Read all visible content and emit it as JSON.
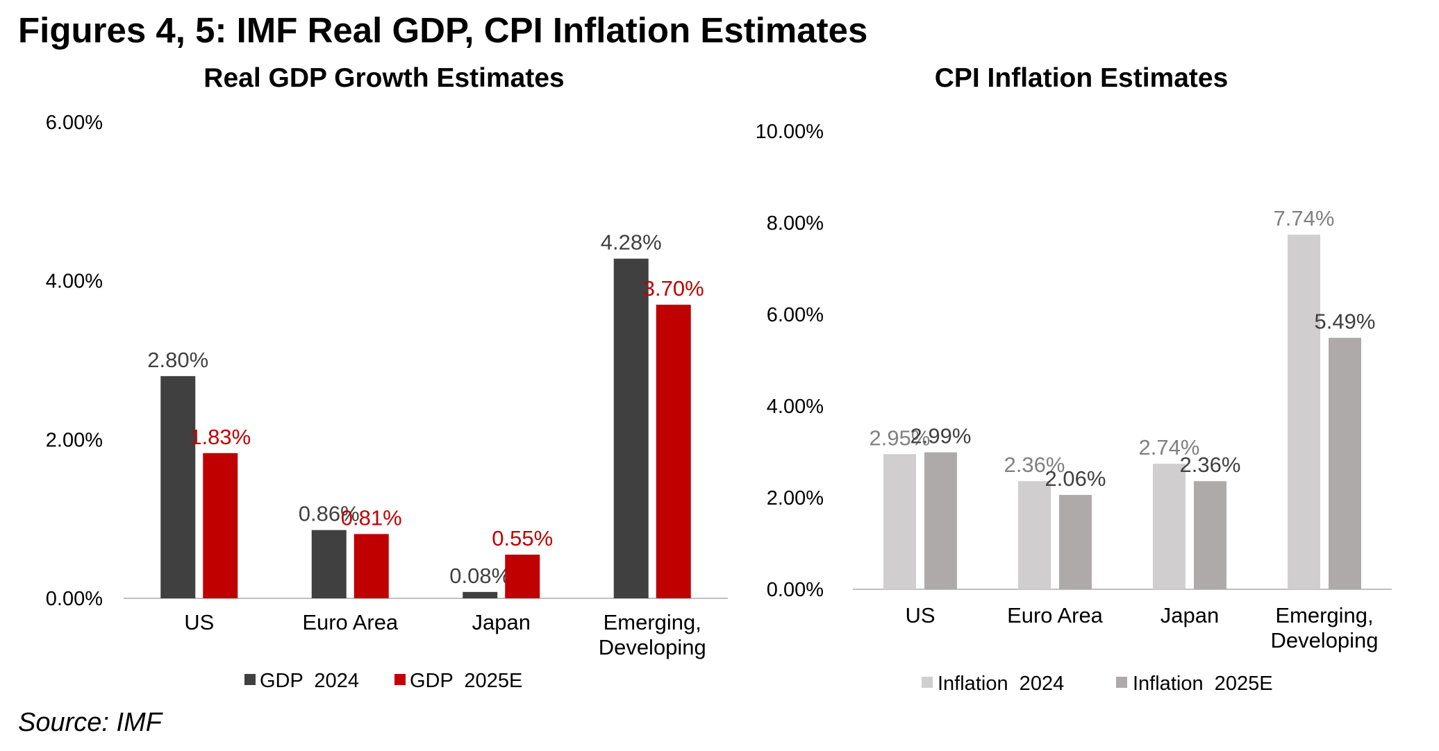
{
  "title": "Figures 4, 5: IMF Real GDP, CPI Inflation Estimates",
  "source": "Source: IMF",
  "chart_data": [
    {
      "type": "bar",
      "title": "Real GDP Growth Estimates",
      "categories": [
        [
          "US"
        ],
        [
          "Euro Area"
        ],
        [
          "Japan"
        ],
        [
          "Emerging,",
          "Developing"
        ]
      ],
      "ylim": [
        0,
        6
      ],
      "yticks": [
        0,
        2,
        4,
        6
      ],
      "ytick_labels": [
        "0.00%",
        "2.00%",
        "4.00%",
        "6.00%"
      ],
      "series": [
        {
          "name": "GDP  2024",
          "color": "#404040",
          "label_color": "#404040",
          "values": [
            2.8,
            0.86,
            0.08,
            4.28
          ],
          "labels": [
            "2.80%",
            "0.86%",
            "0.08%",
            "4.28%"
          ]
        },
        {
          "name": "GDP  2025E",
          "color": "#c00000",
          "label_color": "#c00000",
          "values": [
            1.83,
            0.81,
            0.55,
            3.7
          ],
          "labels": [
            "1.83%",
            "0.81%",
            "0.55%",
            "3.70%"
          ]
        }
      ],
      "legend": "bottom"
    },
    {
      "type": "bar",
      "title": "CPI Inflation  Estimates",
      "categories": [
        [
          "US"
        ],
        [
          "Euro Area"
        ],
        [
          "Japan"
        ],
        [
          "Emerging,",
          "Developing"
        ]
      ],
      "ylim": [
        0,
        10
      ],
      "yticks": [
        0,
        2,
        4,
        6,
        8,
        10
      ],
      "ytick_labels": [
        "0.00%",
        "2.00%",
        "4.00%",
        "6.00%",
        "8.00%",
        "10.00%"
      ],
      "series": [
        {
          "name": "Inflation  2024",
          "color": "#d0cece",
          "label_color": "#808080",
          "values": [
            2.95,
            2.36,
            2.74,
            7.74
          ],
          "labels": [
            "2.95%",
            "2.36%",
            "2.74%",
            "7.74%"
          ]
        },
        {
          "name": "Inflation  2025E",
          "color": "#aeaaaa",
          "label_color": "#404040",
          "values": [
            2.99,
            2.06,
            2.36,
            5.49
          ],
          "labels": [
            "2.99%",
            "2.06%",
            "2.36%",
            "5.49%"
          ]
        }
      ],
      "legend": "bottom"
    }
  ]
}
